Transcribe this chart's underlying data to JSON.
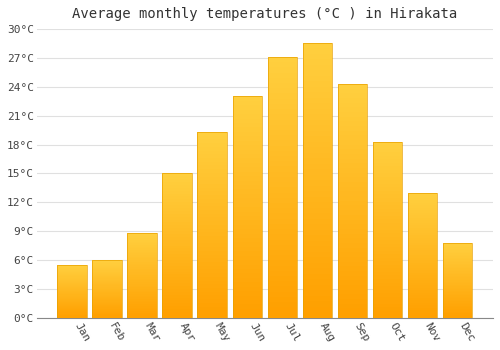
{
  "title": "Average monthly temperatures (°C ) in Hirakata",
  "months": [
    "Jan",
    "Feb",
    "Mar",
    "Apr",
    "May",
    "Jun",
    "Jul",
    "Aug",
    "Sep",
    "Oct",
    "Nov",
    "Dec"
  ],
  "temperatures": [
    5.5,
    6.0,
    8.8,
    15.0,
    19.3,
    23.0,
    27.1,
    28.6,
    24.3,
    18.3,
    13.0,
    7.8
  ],
  "bar_color_top": "#FFD060",
  "bar_color_bottom": "#FFA000",
  "bar_edge_color": "#E8A000",
  "background_color": "#FFFFFF",
  "grid_color": "#E0E0E0",
  "title_fontsize": 10,
  "tick_label_fontsize": 8,
  "ylim": [
    0,
    30
  ],
  "ytick_step": 3,
  "font_family": "monospace",
  "bar_width": 0.85
}
